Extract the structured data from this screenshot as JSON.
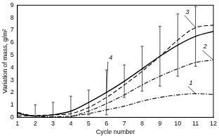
{
  "chart_data": {
    "type": "line",
    "x_label": "Cycle number",
    "y_label": "Variation of mass, g/m²",
    "x": [
      1,
      2,
      3,
      4,
      5,
      6,
      7,
      8,
      9,
      10,
      11,
      12
    ],
    "xlim": [
      1,
      12
    ],
    "xticks": [
      1,
      2,
      3,
      4,
      5,
      6,
      7,
      8,
      9,
      10,
      11,
      12
    ],
    "ylim": [
      0,
      9
    ],
    "yticks": [
      0,
      1,
      2,
      3,
      4,
      5,
      6,
      7,
      8,
      9
    ],
    "grid": false,
    "series": [
      {
        "name": "1",
        "color": "#000000",
        "line_style": "dashdot",
        "values": [
          0.4,
          0.1,
          0.05,
          0.1,
          0.3,
          0.6,
          0.9,
          1.3,
          1.6,
          1.8,
          1.9,
          1.85
        ]
      },
      {
        "name": "2",
        "color": "#000000",
        "line_style": "dashdot",
        "values": [
          null,
          null,
          null,
          0.05,
          0.5,
          1.1,
          1.8,
          2.6,
          3.3,
          3.9,
          4.4,
          4.6
        ]
      },
      {
        "name": "3",
        "color": "#000000",
        "line_style": "dashed",
        "values": [
          0.1,
          0.15,
          0.2,
          0.3,
          0.8,
          1.6,
          2.6,
          3.7,
          4.9,
          6.2,
          7.2,
          7.4
        ]
      },
      {
        "name": "4",
        "color": "#000000",
        "line_style": "solid",
        "values": [
          0.3,
          0.1,
          0.2,
          0.5,
          1.2,
          2.0,
          2.9,
          3.9,
          4.9,
          5.8,
          6.5,
          6.9
        ],
        "errors": [
          null,
          0.9,
          1.0,
          1.2,
          1.0,
          1.8,
          1.3,
          1.8,
          2.4,
          2.5,
          2.4,
          null
        ]
      }
    ]
  }
}
